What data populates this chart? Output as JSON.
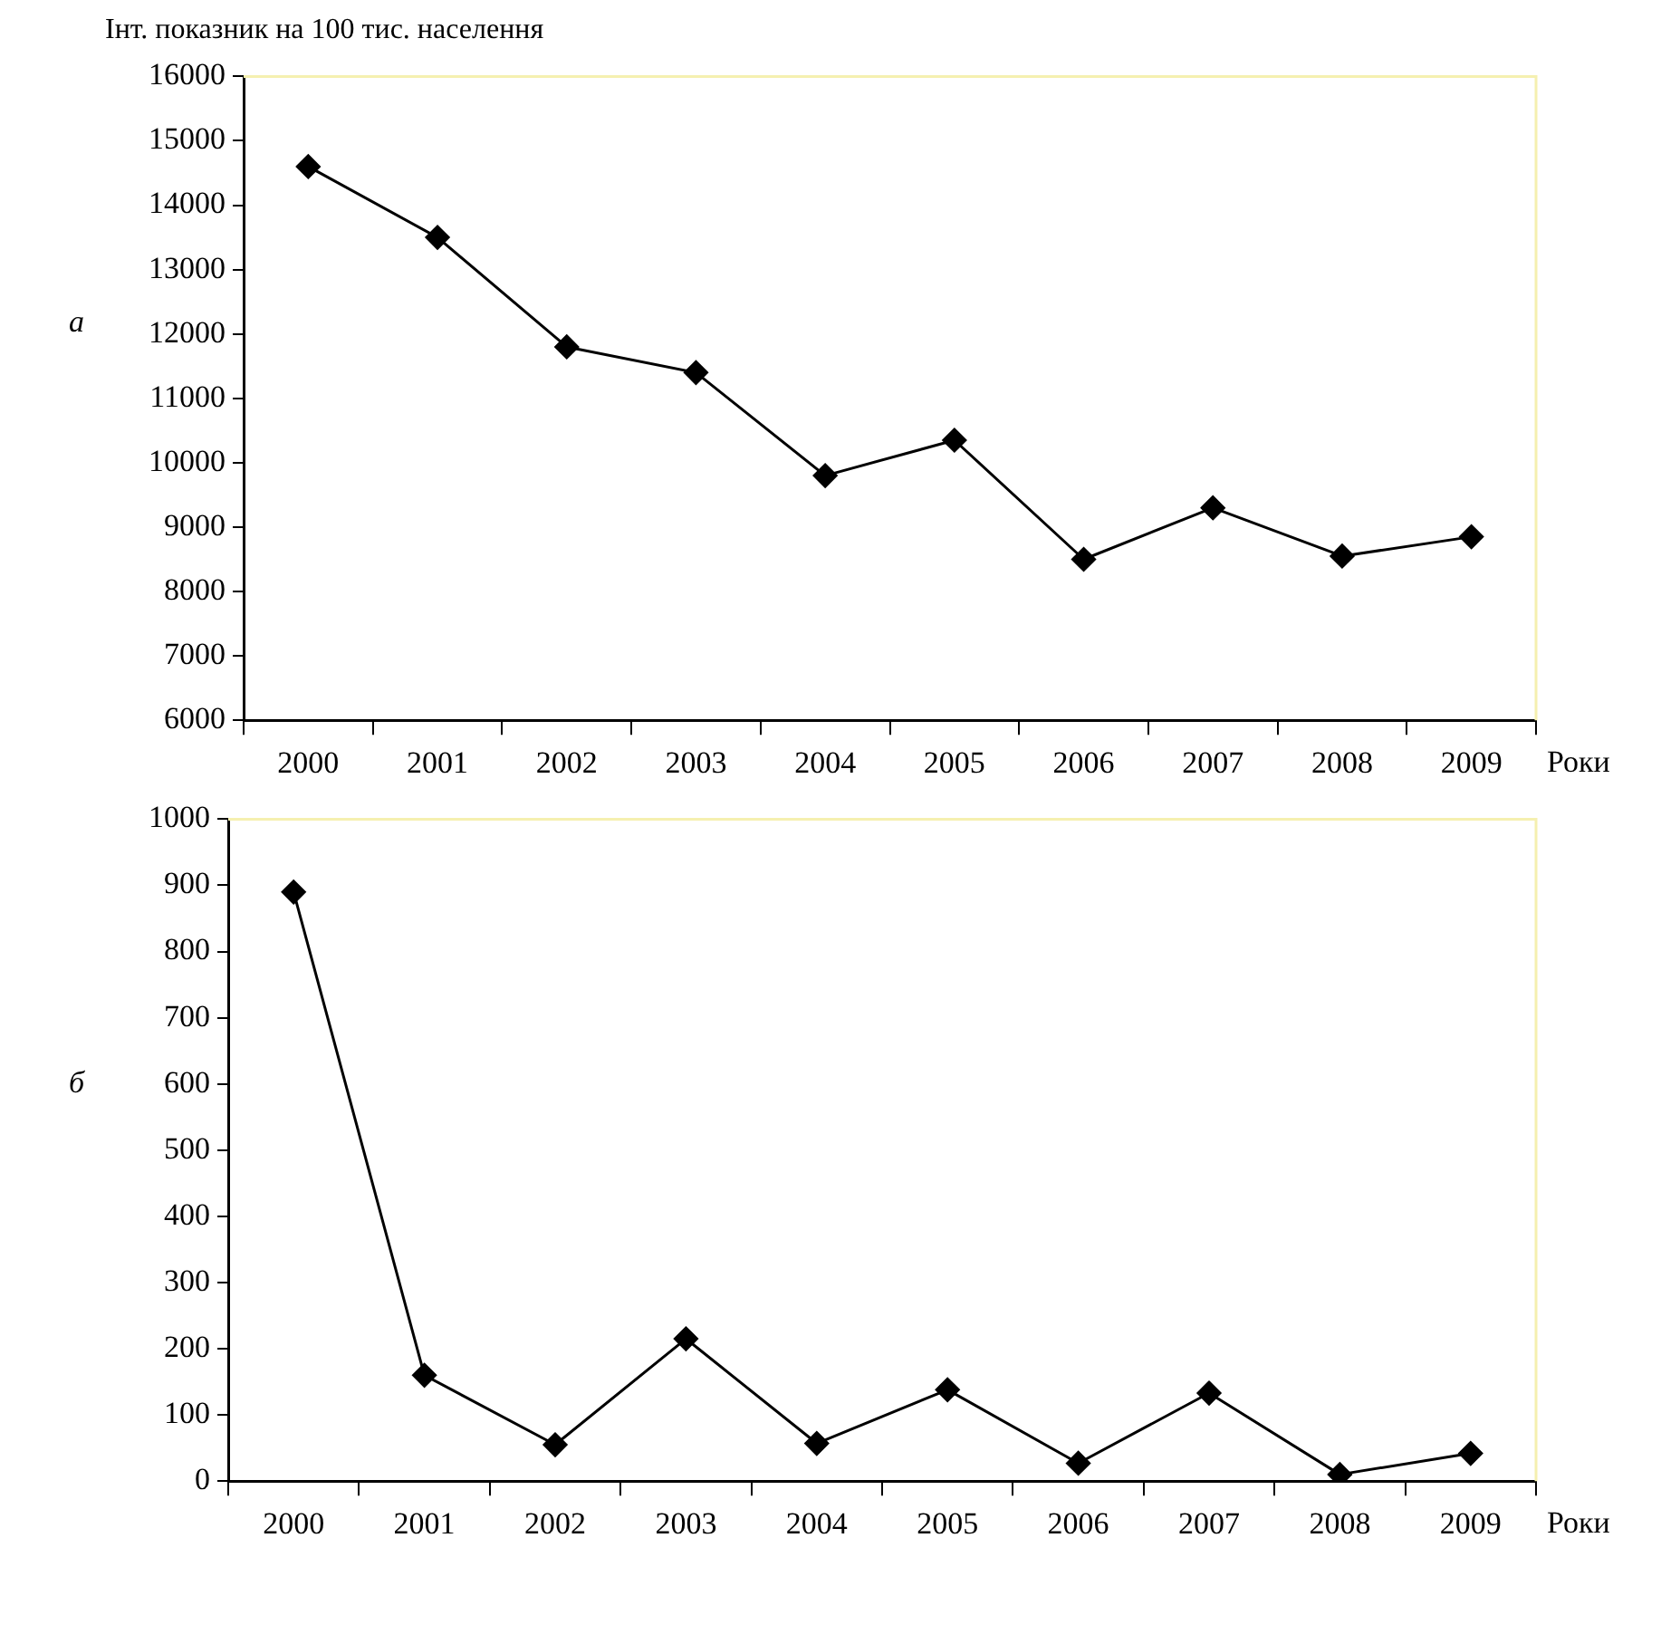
{
  "chart_data": [
    {
      "type": "line",
      "ylabel": "Інт. показник на 100 тис. населення",
      "xlabel": "Роки",
      "annotations": [
        "а"
      ],
      "categories": [
        "2000",
        "2001",
        "2002",
        "2003",
        "2004",
        "2005",
        "2006",
        "2007",
        "2008",
        "2009"
      ],
      "series": [
        {
          "color": "#000000",
          "values": [
            14600,
            13500,
            11800,
            11400,
            9800,
            10350,
            8500,
            9300,
            8550,
            8850
          ]
        }
      ],
      "ylim": [
        6000,
        16000
      ],
      "yticks": [
        6000,
        7000,
        8000,
        9000,
        10000,
        11000,
        12000,
        13000,
        14000,
        15000,
        16000
      ],
      "grid": false,
      "legend": false,
      "marker": "diamond",
      "line_style": "solid"
    },
    {
      "type": "line",
      "xlabel": "Роки",
      "annotations": [
        "б"
      ],
      "categories": [
        "2000",
        "2001",
        "2002",
        "2003",
        "2004",
        "2005",
        "2006",
        "2007",
        "2008",
        "2009"
      ],
      "series": [
        {
          "color": "#000000",
          "values": [
            890,
            160,
            55,
            215,
            57,
            138,
            27,
            133,
            10,
            42
          ]
        }
      ],
      "ylim": [
        0,
        1000
      ],
      "yticks": [
        0,
        100,
        200,
        300,
        400,
        500,
        600,
        700,
        800,
        900,
        1000
      ],
      "grid": false,
      "legend": false,
      "marker": "diamond",
      "line_style": "solid"
    }
  ]
}
